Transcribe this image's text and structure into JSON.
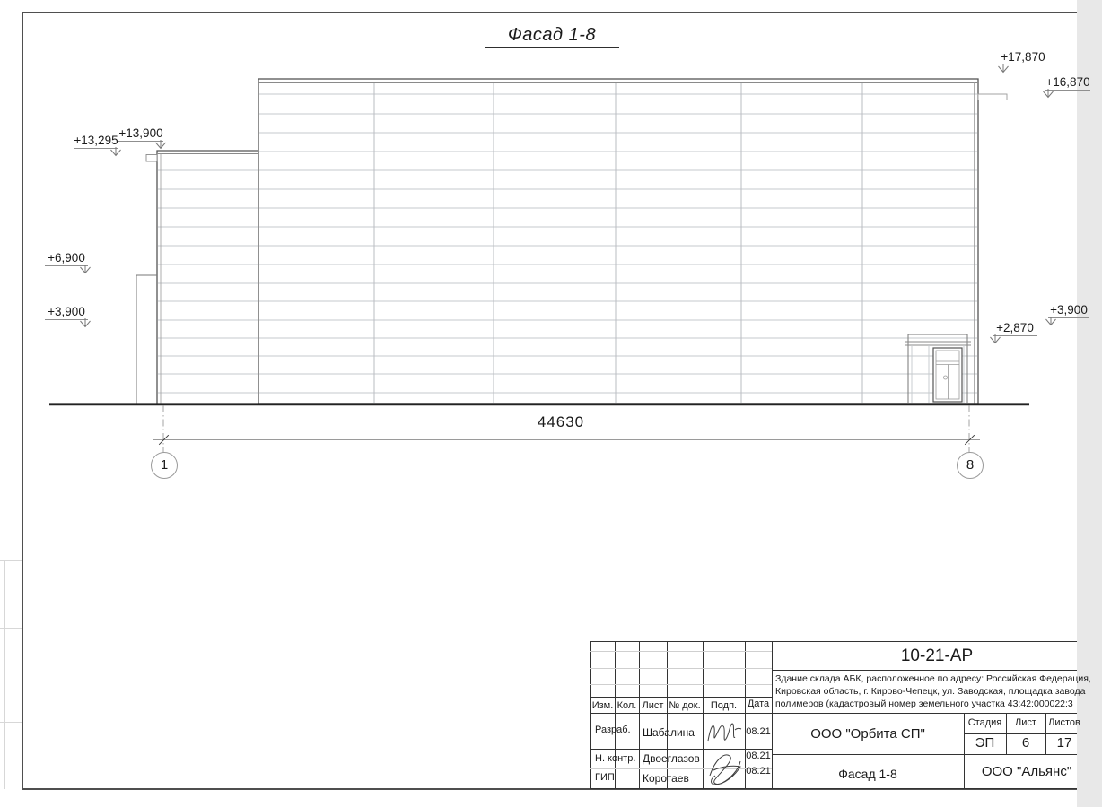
{
  "drawing": {
    "title": "Фасад 1-8",
    "dimension_total": "44630",
    "axis_marks": {
      "left": "1",
      "right": "8"
    },
    "elevation_marks": [
      {
        "id": "elev-13900",
        "value": "+13,900"
      },
      {
        "id": "elev-13295",
        "value": "+13,295"
      },
      {
        "id": "elev-6900-left",
        "value": "+6,900"
      },
      {
        "id": "elev-3900-left",
        "value": "+3,900"
      },
      {
        "id": "elev-17870",
        "value": "+17,870"
      },
      {
        "id": "elev-16870",
        "value": "+16,870"
      },
      {
        "id": "elev-3900-right",
        "value": "+3,900"
      },
      {
        "id": "elev-2870",
        "value": "+2,870"
      }
    ]
  },
  "title_block": {
    "doc_number": "10-21-АР",
    "description_lines": [
      "Здание склада АБК, расположенное по адресу: Российская Федерация,",
      "Кировская область, г. Кирово-Чепецк, ул. Заводская, площадка завода",
      "полимеров (кадастровый номер земельного участка 43:42:000022:3"
    ],
    "columns": {
      "izm": "Изм.",
      "kol": "Кол.",
      "list": "Лист",
      "ndok": "№ док.",
      "podp": "Подп.",
      "data": "Дата"
    },
    "rows": [
      {
        "role": "Разраб.",
        "name": "Шабалина",
        "date": "08.21"
      },
      {
        "role": "Н. контр.",
        "name": "Двоеглазов",
        "date": "08.21"
      },
      {
        "role": "ГИП",
        "name": "Коротаев",
        "date": "08.21"
      }
    ],
    "company": "ООО \"Орбита СП\"",
    "stage_label": "Стадия",
    "sheet_label": "Лист",
    "sheets_label": "Листов",
    "stage": "ЭП",
    "sheet": "6",
    "sheets": "17",
    "sheet_title": "Фасад 1-8",
    "contractor": "ООО \"Альянс\""
  },
  "colors": {
    "outline": "#555555",
    "panel_joint": "#c5c9cd",
    "ground": "#222222",
    "frame": "#4f4f4f"
  }
}
